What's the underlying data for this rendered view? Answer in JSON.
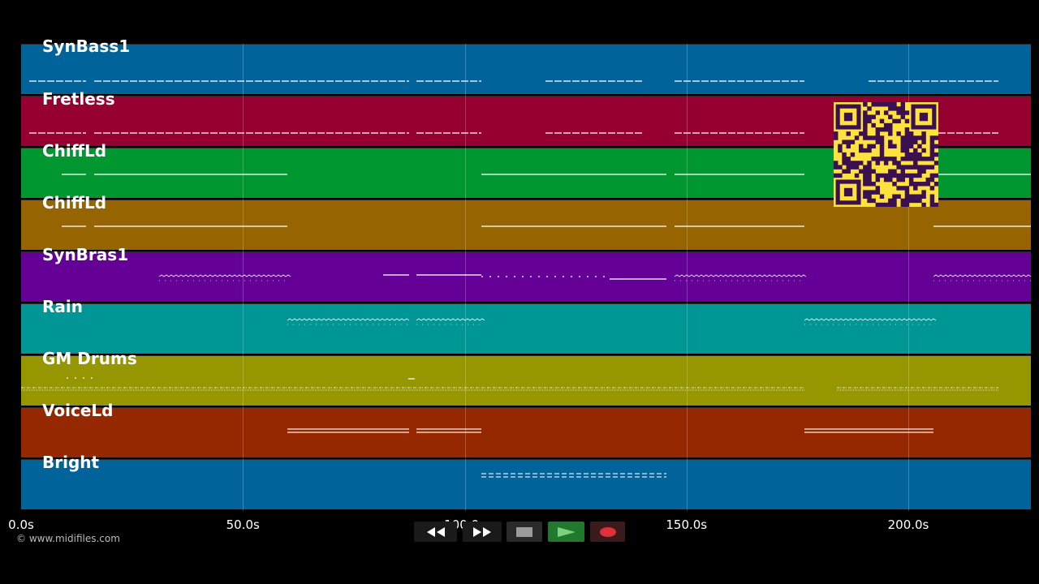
{
  "tracks": [
    {
      "name": "SynBass1",
      "color": "#00649b"
    },
    {
      "name": "Fretless",
      "color": "#960030"
    },
    {
      "name": "ChiffLd",
      "color": "#009630"
    },
    {
      "name": "ChiffLd",
      "color": "#966400"
    },
    {
      "name": "SynBras1",
      "color": "#640096"
    },
    {
      "name": "Rain",
      "color": "#009696"
    },
    {
      "name": "GM Drums",
      "color": "#969600"
    },
    {
      "name": "VoiceLd",
      "color": "#962800"
    },
    {
      "name": "Bright",
      "color": "#00649b"
    }
  ],
  "timeline": {
    "ticks": [
      "0.0s",
      "50.0s",
      "100.0s",
      "150.0s",
      "200.0s"
    ]
  },
  "credit": "© www.midifiles.com",
  "controls": {
    "rewind": "rewind-icon",
    "fast_forward": "fast-forward-icon",
    "stop": "stop-icon",
    "play": "play-icon",
    "record": "record-icon"
  },
  "colors": {
    "background": "#000000",
    "play_button": "#1f7a2e",
    "record_button": "#e0303a",
    "qr_background": "#ffe23d",
    "qr_modules": "#3a1050"
  }
}
